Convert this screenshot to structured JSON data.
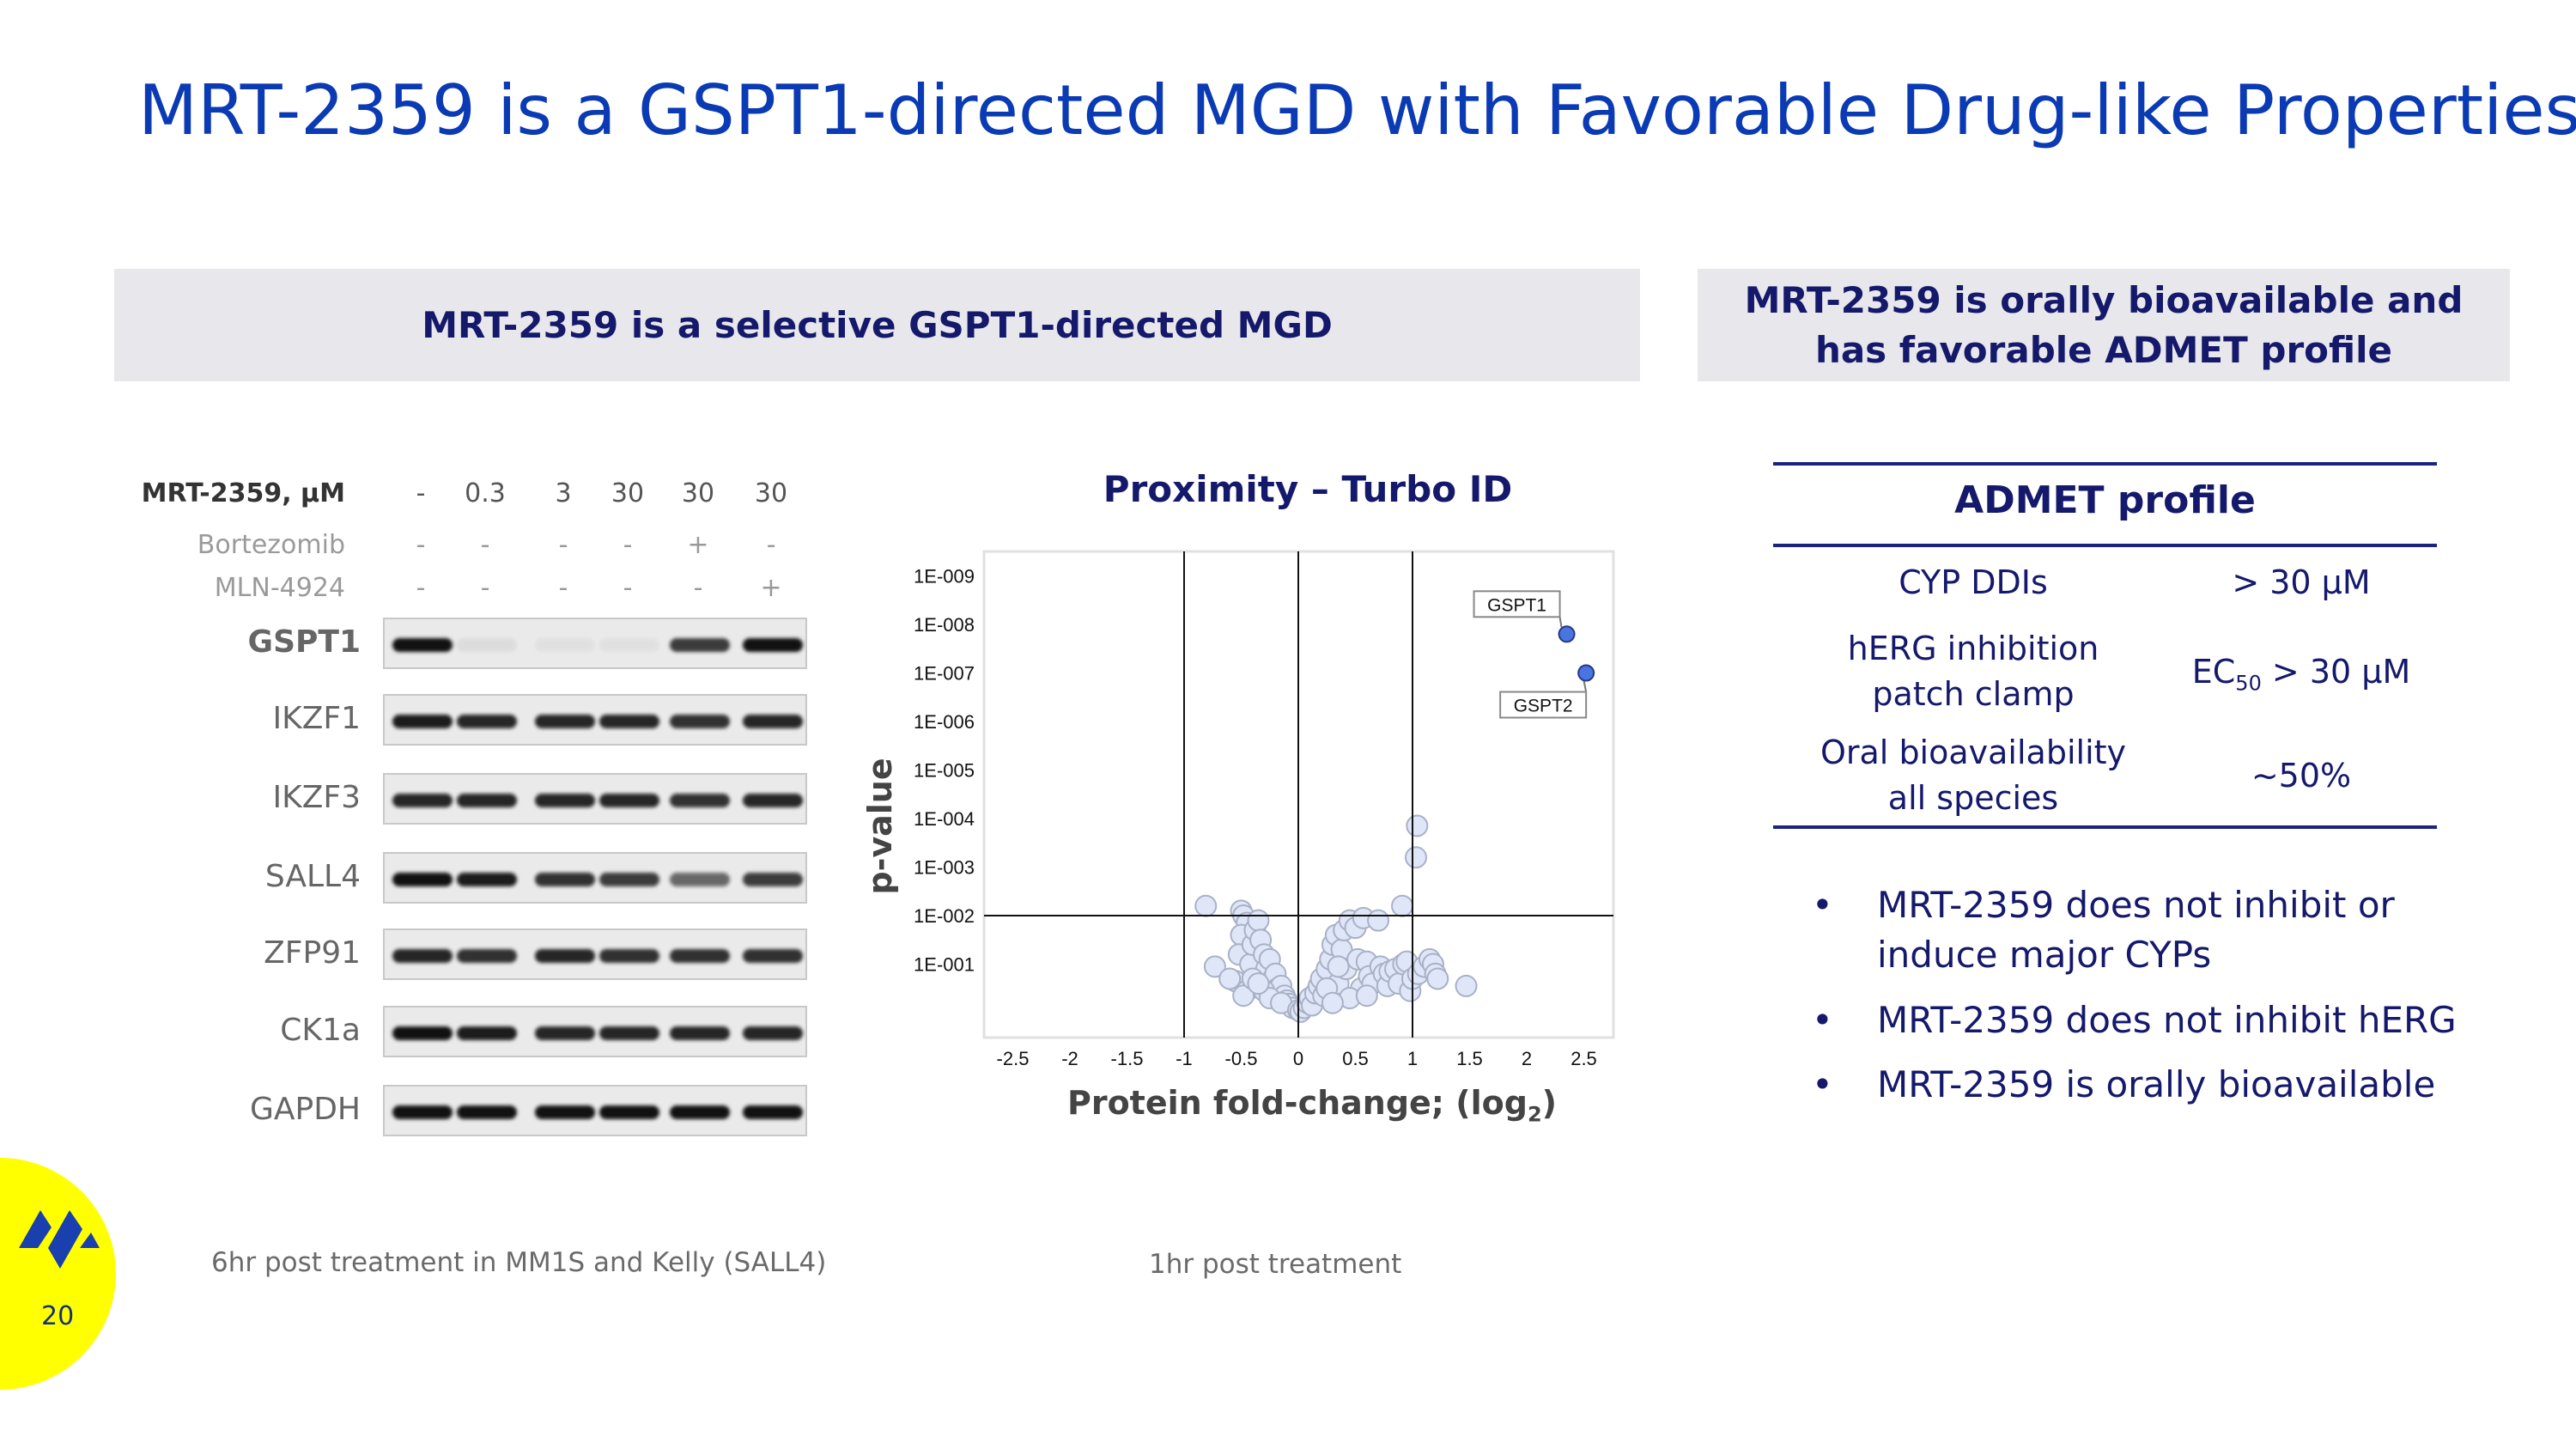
{
  "title": "MRT-2359 is a GSPT1-directed MGD with Favorable Drug-like Properties",
  "left_panel": {
    "header": "MRT-2359 is a selective GSPT1-directed MGD",
    "blot": {
      "row_headers": [
        "MRT-2359, µM",
        "Bortezomib",
        "MLN-4924"
      ],
      "doses": [
        "-",
        "0.3",
        "3",
        "30",
        "30",
        "30"
      ],
      "bortezomib": [
        "-",
        "-",
        "-",
        "-",
        "+",
        "-"
      ],
      "mln4924": [
        "-",
        "-",
        "-",
        "-",
        "-",
        "+"
      ],
      "proteins": [
        {
          "name": "GSPT1",
          "intensity": [
            1,
            0.06,
            0.04,
            0.04,
            0.8,
            1
          ]
        },
        {
          "name": "IKZF1",
          "intensity": [
            0.95,
            0.9,
            0.9,
            0.9,
            0.85,
            0.9
          ]
        },
        {
          "name": "IKZF3",
          "intensity": [
            0.9,
            0.9,
            0.9,
            0.9,
            0.85,
            0.9
          ]
        },
        {
          "name": "SALL4",
          "intensity": [
            1,
            0.95,
            0.85,
            0.8,
            0.6,
            0.8
          ]
        },
        {
          "name": "ZFP91",
          "intensity": [
            0.9,
            0.85,
            0.9,
            0.85,
            0.85,
            0.85
          ]
        },
        {
          "name": "CK1a",
          "intensity": [
            1,
            0.95,
            0.9,
            0.9,
            0.9,
            0.9
          ]
        },
        {
          "name": "GAPDH",
          "intensity": [
            1,
            1,
            1,
            1,
            1,
            1
          ]
        }
      ],
      "footnote": "6hr post treatment in MM1S and Kelly (SALL4)"
    },
    "volcano_footnote": "1hr post treatment"
  },
  "chart_data": {
    "type": "scatter",
    "title": "Proximity – Turbo ID",
    "xlabel": "Protein fold-change; (log",
    "xlabel_sub": "2",
    "xlabel_end": ")",
    "ylabel": "p-value",
    "xlim": [
      -2.75,
      2.75
    ],
    "ylim_neglog10": [
      0,
      9.5
    ],
    "x_ticks": [
      "-2.5",
      "-2",
      "-1.5",
      "-1",
      "-0.5",
      "0",
      "0.5",
      "1",
      "1.5",
      "2",
      "2.5"
    ],
    "x_tick_values": [
      -2.5,
      -2,
      -1.5,
      -1,
      -0.5,
      0,
      0.5,
      1,
      1.5,
      2,
      2.5
    ],
    "y_ticks": [
      "1E-009",
      "1E-008",
      "1E-007",
      "1E-006",
      "1E-005",
      "1E-004",
      "1E-003",
      "1E-002",
      "1E-001"
    ],
    "y_tick_values": [
      9,
      8,
      7,
      6,
      5,
      4,
      3,
      2,
      1
    ],
    "threshold_lines": {
      "x": [
        -1,
        0,
        1
      ],
      "y": [
        2
      ]
    },
    "highlighted": [
      {
        "label": "GSPT1",
        "x": 2.35,
        "y": 7.8
      },
      {
        "label": "GSPT2",
        "x": 2.52,
        "y": 7.0
      }
    ],
    "points": [
      [
        1.04,
        3.85
      ],
      [
        1.03,
        3.2
      ],
      [
        -0.81,
        2.2
      ],
      [
        -0.73,
        0.95
      ],
      [
        0.91,
        2.2
      ],
      [
        1.47,
        0.55
      ],
      [
        -0.5,
        2.1
      ],
      [
        -0.48,
        2.0
      ],
      [
        -0.45,
        1.85
      ],
      [
        -0.5,
        1.6
      ],
      [
        -0.52,
        1.2
      ],
      [
        -0.55,
        0.65
      ],
      [
        -0.6,
        0.7
      ],
      [
        -0.45,
        0.45
      ],
      [
        -0.48,
        0.35
      ],
      [
        -0.42,
        1.0
      ],
      [
        -0.4,
        1.4
      ],
      [
        -0.38,
        1.7
      ],
      [
        -0.35,
        1.9
      ],
      [
        -0.33,
        1.5
      ],
      [
        -0.3,
        1.2
      ],
      [
        -0.28,
        0.9
      ],
      [
        -0.25,
        1.1
      ],
      [
        -0.22,
        0.7
      ],
      [
        -0.2,
        0.8
      ],
      [
        -0.18,
        0.5
      ],
      [
        -0.15,
        0.55
      ],
      [
        -0.12,
        0.35
      ],
      [
        -0.1,
        0.25
      ],
      [
        -0.08,
        0.18
      ],
      [
        -0.05,
        0.1
      ],
      [
        -0.3,
        0.45
      ],
      [
        -0.25,
        0.3
      ],
      [
        -0.4,
        0.7
      ],
      [
        -0.35,
        0.6
      ],
      [
        -0.15,
        0.2
      ],
      [
        0.0,
        0.05
      ],
      [
        0.02,
        0.02
      ],
      [
        0.05,
        0.1
      ],
      [
        0.08,
        0.2
      ],
      [
        0.1,
        0.3
      ],
      [
        0.12,
        0.15
      ],
      [
        0.15,
        0.4
      ],
      [
        0.18,
        0.55
      ],
      [
        0.2,
        0.7
      ],
      [
        0.22,
        0.35
      ],
      [
        0.25,
        0.9
      ],
      [
        0.28,
        1.1
      ],
      [
        0.3,
        1.4
      ],
      [
        0.33,
        1.6
      ],
      [
        0.35,
        0.6
      ],
      [
        0.38,
        1.3
      ],
      [
        0.4,
        1.7
      ],
      [
        0.42,
        0.9
      ],
      [
        0.45,
        1.9
      ],
      [
        0.5,
        1.75
      ],
      [
        0.52,
        1.1
      ],
      [
        0.55,
        0.5
      ],
      [
        0.57,
        1.95
      ],
      [
        0.6,
        1.05
      ],
      [
        0.62,
        0.75
      ],
      [
        0.65,
        0.6
      ],
      [
        0.7,
        1.9
      ],
      [
        0.72,
        0.95
      ],
      [
        0.75,
        0.8
      ],
      [
        0.78,
        0.55
      ],
      [
        0.8,
        0.85
      ],
      [
        0.85,
        0.9
      ],
      [
        0.88,
        0.6
      ],
      [
        0.92,
        1.0
      ],
      [
        0.95,
        1.05
      ],
      [
        0.98,
        0.45
      ],
      [
        1.0,
        0.7
      ],
      [
        1.05,
        0.8
      ],
      [
        1.1,
        0.95
      ],
      [
        1.15,
        1.1
      ],
      [
        1.18,
        1.0
      ],
      [
        1.2,
        0.8
      ],
      [
        1.22,
        0.7
      ],
      [
        0.35,
        0.95
      ],
      [
        0.25,
        0.5
      ],
      [
        0.45,
        0.3
      ],
      [
        0.6,
        0.35
      ],
      [
        0.3,
        0.2
      ]
    ]
  },
  "right_panel": {
    "header_line1": "MRT-2359 is orally bioavailable and",
    "header_line2": "has favorable ADMET profile",
    "table_title": "ADMET profile",
    "rows": [
      {
        "label1": "CYP DDIs",
        "label2": "",
        "value": "> 30 µM"
      },
      {
        "label1": "hERG inhibition",
        "label2": "patch clamp",
        "value_prefix": "EC",
        "value_sub": "50",
        "value": " > 30 µM"
      },
      {
        "label1": "Oral bioavailability",
        "label2": "all species",
        "value": "~50%"
      }
    ],
    "bullets": [
      "MRT-2359 does not inhibit or induce major CYPs",
      "MRT-2359 does not inhibit hERG",
      "MRT-2359 is orally bioavailable"
    ],
    "bullet_char": "•"
  },
  "footer": {
    "page_number": "20",
    "logo_icon": "company-logo-icon"
  },
  "colors": {
    "title": "#0a3ab4",
    "navy": "#15196b",
    "band": "#e8e8ec",
    "point_fill": "#dfe6f7",
    "highlight": "#4a74e0",
    "badge": "#ffff00"
  }
}
